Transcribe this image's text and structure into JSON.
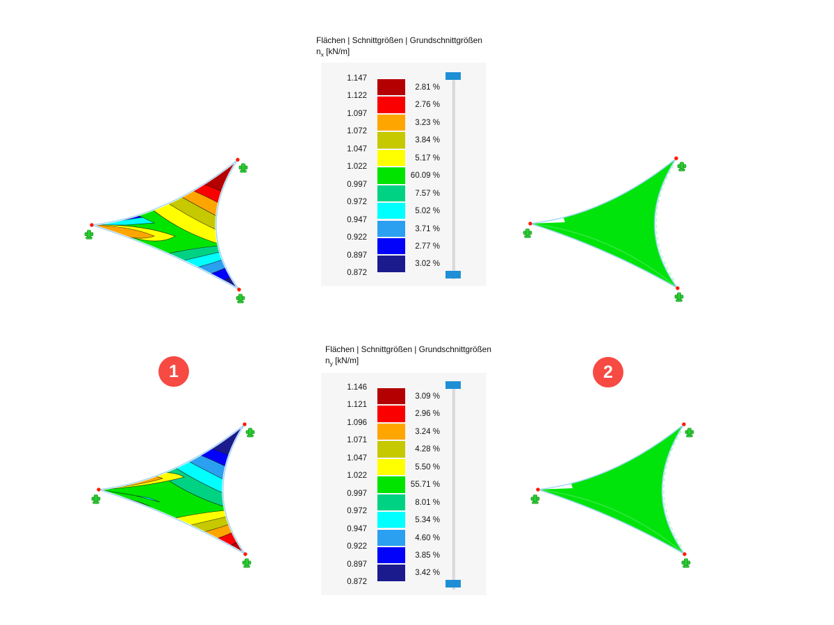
{
  "palette": {
    "band_colors": [
      "#b40000",
      "#fb0000",
      "#ffa500",
      "#c6c800",
      "#ffff00",
      "#00e400",
      "#00d284",
      "#00ffff",
      "#2b9ff0",
      "#0202fa",
      "#1b1b8e"
    ],
    "accent_blue": "#1e8fd5",
    "panel_bg": "#f6f6f7",
    "sail_green": "#00e40c",
    "support_green": "#2dc834",
    "node_red": "#ff1a00",
    "badge_red": "#f64a42",
    "edge_blue": "#a6d9f5"
  },
  "panels": {
    "nx": {
      "title": "Flächen | Schnittgrößen | Grundschnittgrößen",
      "symbol": "n",
      "sub": "x",
      "unit": "[kN/m]",
      "values": [
        "1.147",
        "1.122",
        "1.097",
        "1.072",
        "1.047",
        "1.022",
        "0.997",
        "0.972",
        "0.947",
        "0.922",
        "0.897",
        "0.872"
      ],
      "percentages": [
        "2.81 %",
        "2.76 %",
        "3.23 %",
        "3.84 %",
        "5.17 %",
        "60.09 %",
        "7.57 %",
        "5.02 %",
        "3.71 %",
        "2.77 %",
        "3.02 %"
      ]
    },
    "ny": {
      "title": "Flächen | Schnittgrößen | Grundschnittgrößen",
      "symbol": "n",
      "sub": "y",
      "unit": "[kN/m]",
      "values": [
        "1.146",
        "1.121",
        "1.096",
        "1.071",
        "1.047",
        "1.022",
        "0.997",
        "0.972",
        "0.947",
        "0.922",
        "0.897",
        "0.872"
      ],
      "percentages": [
        "3.09 %",
        "2.96 %",
        "3.24 %",
        "4.28 %",
        "5.50 %",
        "55.71 %",
        "8.01 %",
        "5.34 %",
        "4.60 %",
        "3.85 %",
        "3.42 %"
      ]
    }
  },
  "badges": {
    "model1": "1",
    "model2": "2"
  }
}
